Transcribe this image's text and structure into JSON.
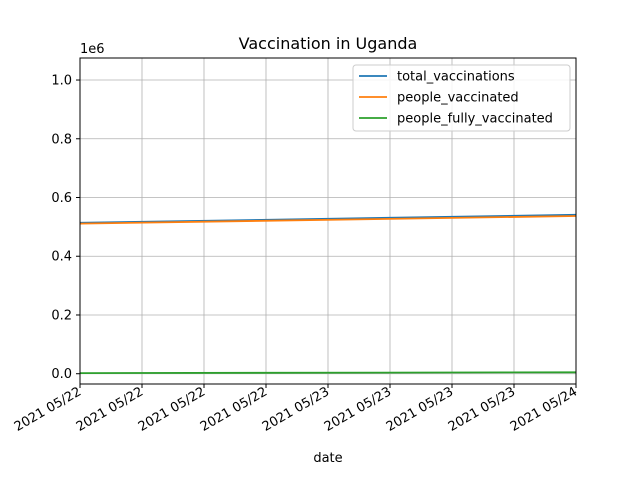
{
  "chart_data": {
    "type": "line",
    "title": "Vaccination in Uganda",
    "xlabel": "date",
    "ylabel": "",
    "y_offset_label": "1e6",
    "x": [
      "2021-05-22 00:00",
      "2021-05-24 00:00"
    ],
    "x_ticks": [
      {
        "pos": 0,
        "label": "2021 05/22"
      },
      {
        "pos": 1,
        "label": "2021 05/22"
      },
      {
        "pos": 2,
        "label": "2021 05/22"
      },
      {
        "pos": 3,
        "label": "2021 05/22"
      },
      {
        "pos": 4,
        "label": "2021 05/23"
      },
      {
        "pos": 5,
        "label": "2021 05/23"
      },
      {
        "pos": 6,
        "label": "2021 05/23"
      },
      {
        "pos": 7,
        "label": "2021 05/23"
      },
      {
        "pos": 8,
        "label": "2021 05/24"
      }
    ],
    "xlim": [
      0,
      8
    ],
    "y_ticks": [
      "0.0",
      "0.2",
      "0.4",
      "0.6",
      "0.8",
      "1.0"
    ],
    "ylim": [
      -0.035,
      1.075
    ],
    "grid": true,
    "legend_position": "top-right",
    "series": [
      {
        "name": "total_vaccinations",
        "color": "#1f77b4",
        "values": [
          0.514,
          0.541
        ]
      },
      {
        "name": "people_vaccinated",
        "color": "#ff7f0e",
        "values": [
          0.511,
          0.537
        ]
      },
      {
        "name": "people_fully_vaccinated",
        "color": "#2ca02c",
        "values": [
          0.002,
          0.005
        ]
      }
    ]
  }
}
